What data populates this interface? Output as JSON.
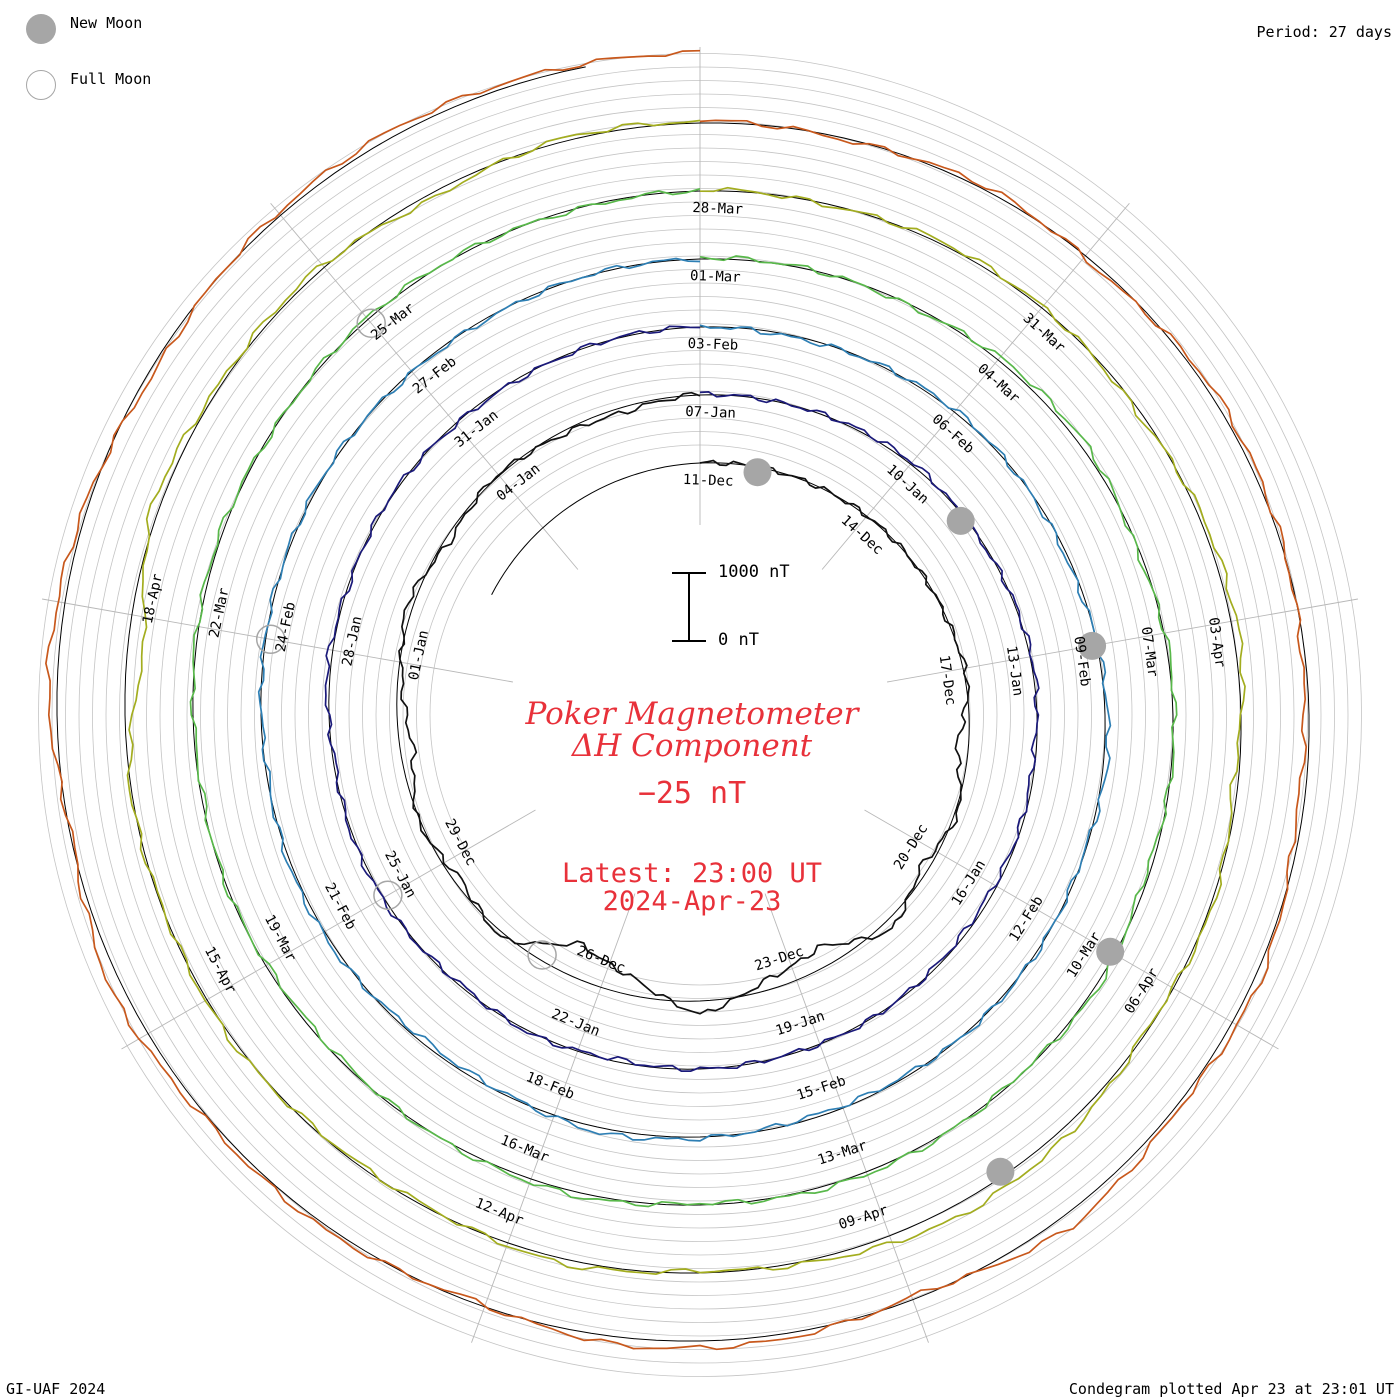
{
  "legend": {
    "new_moon": {
      "label": "New Moon",
      "color": "#a6a6a6"
    },
    "full_moon": {
      "label": "Full Moon",
      "color": "#a6a6a6"
    }
  },
  "period_label": "Period: 27 days",
  "footer": {
    "left": "GI-UAF 2024",
    "right": "Condegram plotted Apr 23 at 23:01 UT"
  },
  "title": {
    "line1": "Poker Magnetometer",
    "line2": "ΔH Component",
    "value": "−25 nT",
    "latest_label": "Latest: 23:00 UT",
    "latest_date": "2024-Apr-23",
    "color": "#e8313a"
  },
  "scale_bar": {
    "top_label": "1000 nT",
    "bottom_label": "0 nT"
  },
  "chart_data": {
    "type": "line",
    "subtype": "spiral condegram",
    "period_days": 27,
    "start": "2023-12-11",
    "end": "2024-04-23 23:00 UT",
    "units": "nT",
    "series": [
      {
        "values": [
          0,
          3,
          -2,
          5,
          1,
          -3,
          40,
          -180,
          60,
          -120,
          150,
          -300,
          -150,
          200,
          -250,
          -500,
          80,
          -100,
          40,
          -200,
          -60,
          100,
          -80,
          30,
          -40,
          -80,
          20
        ],
        "color": "#111111"
      },
      {
        "values": [
          10,
          -5,
          20,
          40,
          -20,
          10,
          30,
          -40,
          -25,
          -50,
          -20,
          10,
          -10,
          5,
          -40,
          30,
          -30,
          15,
          25,
          -30,
          60,
          -10,
          20,
          -15,
          -20,
          10,
          5
        ],
        "color": "#1b1a7a"
      },
      {
        "values": [
          5,
          -30,
          10,
          35,
          -10,
          -40,
          20,
          60,
          -20,
          10,
          15,
          -30,
          -40,
          20,
          80,
          -30,
          -60,
          30,
          40,
          -25,
          10,
          15,
          20,
          -15,
          -20,
          10,
          0
        ],
        "color": "#2e7fb4"
      },
      {
        "values": [
          20,
          10,
          -30,
          60,
          80,
          -40,
          30,
          10,
          -60,
          50,
          -20,
          30,
          40,
          -30,
          60,
          30,
          -20,
          -40,
          10,
          -30,
          20,
          40,
          -10,
          30,
          15,
          -20,
          10
        ],
        "color": "#58b84a"
      },
      {
        "values": [
          30,
          -20,
          40,
          20,
          -50,
          60,
          90,
          -80,
          40,
          -30,
          120,
          180,
          60,
          -40,
          80,
          -20,
          -30,
          40,
          -10,
          20,
          -260,
          120,
          30,
          60,
          -90,
          50,
          20
        ],
        "color": "#a3ad1f"
      },
      {
        "values": [
          40,
          -30,
          60,
          -50,
          80,
          30,
          -60,
          -90,
          100,
          40,
          200,
          -60,
          80,
          120,
          -40,
          60,
          40,
          180,
          -30,
          150,
          60,
          -80,
          40,
          100,
          60,
          30
        ],
        "color": "#c8581c"
      }
    ],
    "date_labels": [
      "11-Dec",
      "14-Dec",
      "17-Dec",
      "20-Dec",
      "23-Dec",
      "26-Dec",
      "29-Dec",
      "01-Jan",
      "04-Jan",
      "07-Jan",
      "10-Jan",
      "13-Jan",
      "16-Jan",
      "19-Jan",
      "22-Jan",
      "25-Jan",
      "28-Jan",
      "31-Jan",
      "03-Feb",
      "06-Feb",
      "09-Feb",
      "12-Feb",
      "15-Feb",
      "18-Feb",
      "21-Feb",
      "24-Feb",
      "27-Feb",
      "01-Mar",
      "04-Mar",
      "07-Mar",
      "10-Mar",
      "13-Mar",
      "16-Mar",
      "19-Mar",
      "22-Mar",
      "25-Mar",
      "28-Mar",
      "31-Mar",
      "03-Apr",
      "06-Apr",
      "09-Apr",
      "12-Apr",
      "15-Apr",
      "18-Apr"
    ],
    "new_moons": [
      "2023-12-12",
      "2024-01-11",
      "2024-02-09",
      "2024-03-10",
      "2024-04-08"
    ],
    "full_moons": [
      "2023-12-27",
      "2024-01-25",
      "2024-02-24",
      "2024-03-25"
    ]
  }
}
